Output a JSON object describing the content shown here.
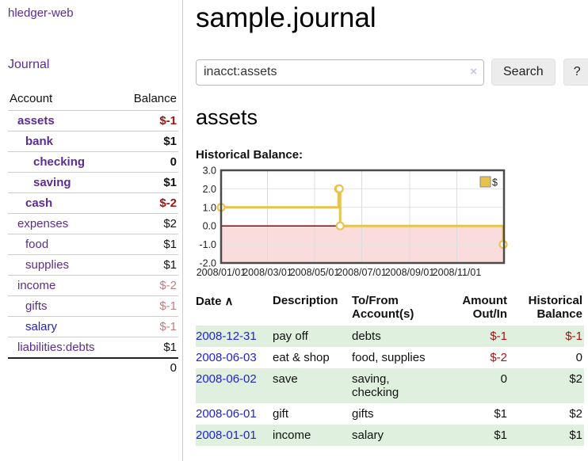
{
  "sidebar": {
    "app_title": "hledger-web",
    "nav_journal": "Journal",
    "accounts": {
      "header_account": "Account",
      "header_balance": "Balance",
      "rows": [
        {
          "name": "assets",
          "balance": "$-1"
        },
        {
          "name": "bank",
          "balance": "$1"
        },
        {
          "name": "checking",
          "balance": "0"
        },
        {
          "name": "saving",
          "balance": "$1"
        },
        {
          "name": "cash",
          "balance": "$-2"
        },
        {
          "name": "expenses",
          "balance": "$2"
        },
        {
          "name": "food",
          "balance": "$1"
        },
        {
          "name": "supplies",
          "balance": "$1"
        },
        {
          "name": "income",
          "balance": "$-2"
        },
        {
          "name": "gifts",
          "balance": "$-1"
        },
        {
          "name": "salary",
          "balance": "$-1"
        },
        {
          "name": "liabilities:debts",
          "balance": "$1"
        }
      ],
      "total": "0"
    }
  },
  "header": {
    "title": "sample.journal"
  },
  "search": {
    "query": "inacct:assets",
    "clear_icon": "×",
    "button_label": "Search",
    "help_label": "?"
  },
  "register": {
    "heading": "assets",
    "chart_title": "Historical Balance:",
    "table": {
      "headers": {
        "date": "Date",
        "sort_icon": "∧",
        "description": "Description",
        "accounts": "To/From Account(s)",
        "amount": "Amount Out/In",
        "balance": "Historical Balance"
      },
      "rows": [
        {
          "date": "2008-12-31",
          "description": "pay off",
          "accounts": "debts",
          "amount": "$-1",
          "balance": "$-1"
        },
        {
          "date": "2008-06-03",
          "description": "eat & shop",
          "accounts": "food, supplies",
          "amount": "$-2",
          "balance": "0"
        },
        {
          "date": "2008-06-02",
          "description": "save",
          "accounts": "saving, checking",
          "amount": "0",
          "balance": "$2"
        },
        {
          "date": "2008-06-01",
          "description": "gift",
          "accounts": "gifts",
          "amount": "$1",
          "balance": "$2"
        },
        {
          "date": "2008-01-01",
          "description": "income",
          "accounts": "salary",
          "amount": "$1",
          "balance": "$1"
        }
      ]
    }
  },
  "chart_data": {
    "type": "line",
    "title": "Historical Balance:",
    "step": true,
    "series": [
      {
        "name": "$",
        "points": [
          [
            "2008-01-01",
            1
          ],
          [
            "2008-06-01",
            2
          ],
          [
            "2008-06-02",
            2
          ],
          [
            "2008-06-03",
            0
          ],
          [
            "2008-12-31",
            -1
          ]
        ]
      }
    ],
    "x_ticks": [
      "2008/01/01",
      "2008/03/01",
      "2008/05/01",
      "2008/07/01",
      "2008/09/01",
      "2008/11/01"
    ],
    "y_ticks": [
      3,
      2,
      1,
      0,
      -1,
      -2
    ],
    "ylim": [
      -2,
      3
    ],
    "xlim": [
      "2008-01-01",
      "2009-01-01"
    ],
    "legend": {
      "label": "$",
      "position": "top-right"
    },
    "grid": true,
    "colors": {
      "line": "#e8c34b",
      "negative_fill": "#fbdcdc",
      "zero_line": "#8b0000",
      "border": "#4a4a4a",
      "grid": "#dcdcdc"
    }
  },
  "colors": {
    "link_purple": "#5b2d91",
    "link_blue": "#2323cc",
    "negative_strong": "#a01414",
    "negative_muted": "#c47c7c",
    "row_stripe_green": "#dff0df"
  }
}
